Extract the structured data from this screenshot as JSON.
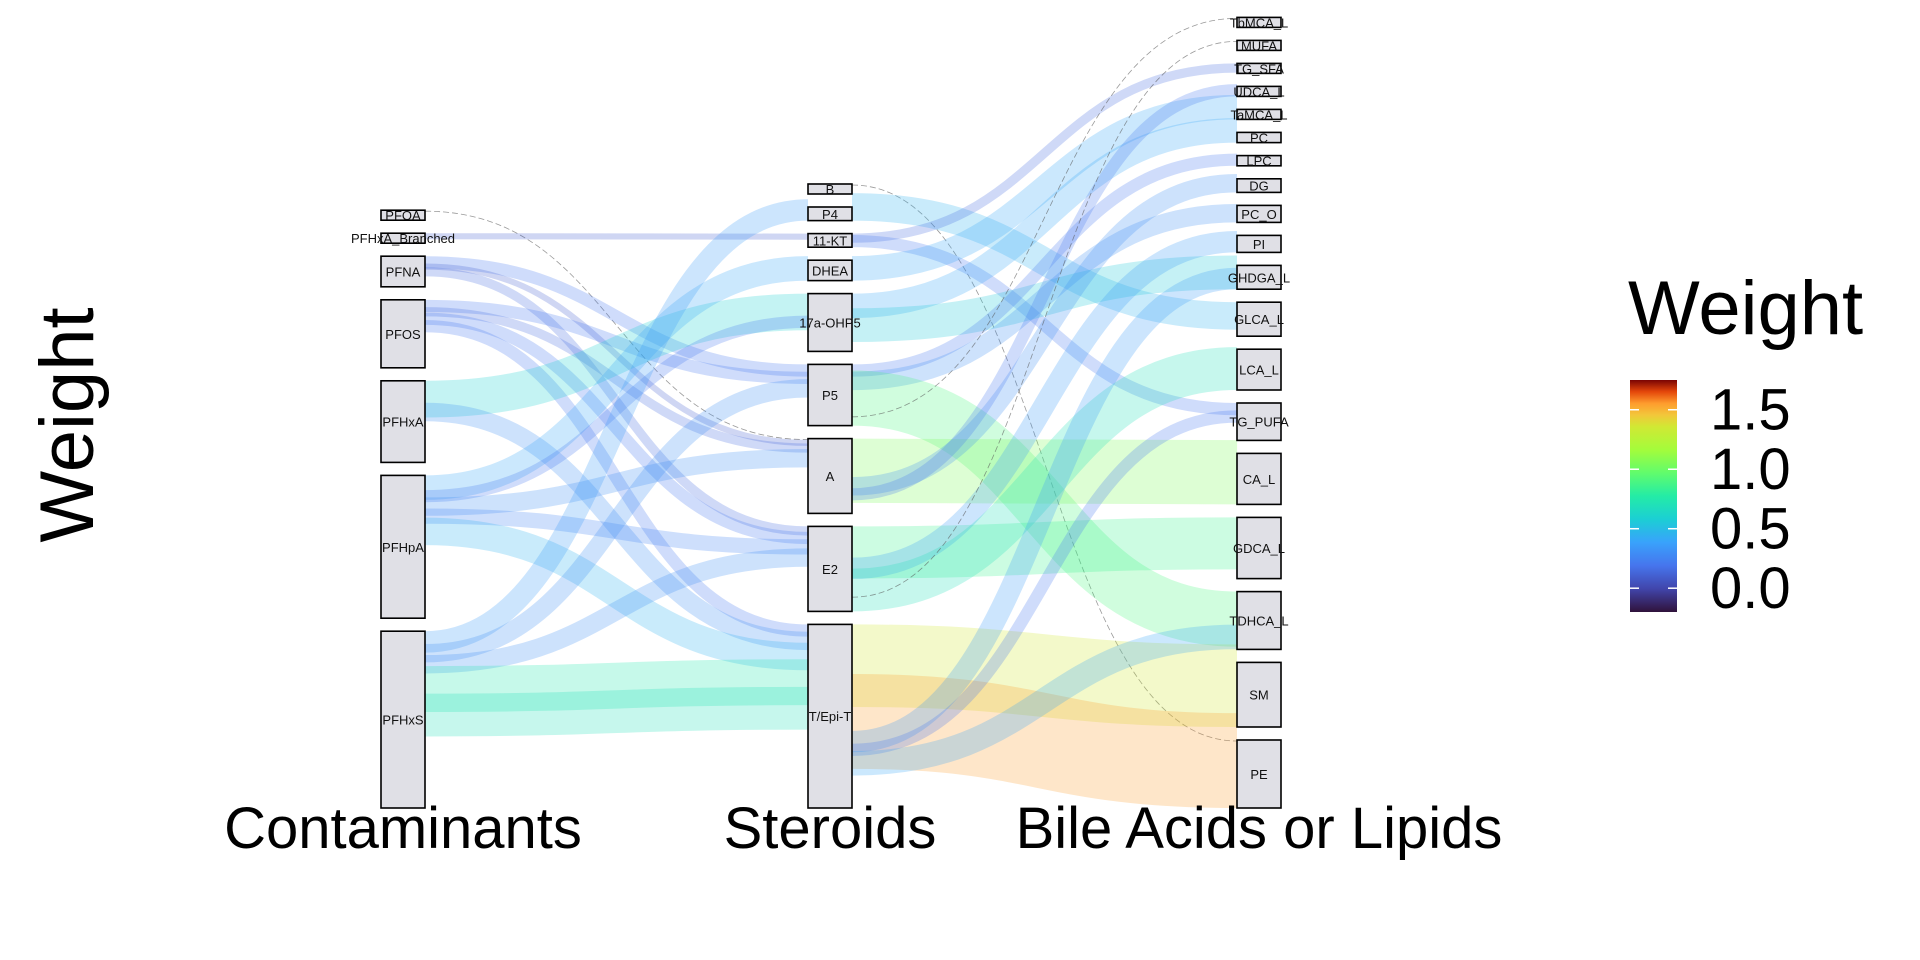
{
  "chart_data": {
    "type": "alluvial",
    "ylabel": "Weight",
    "axes": [
      {
        "label": "Contaminants",
        "nodes": [
          "PFOA",
          "PFHxA_Branched",
          "PFNA",
          "PFOS",
          "PFHxA",
          "PFHpA",
          "PFHxS"
        ]
      },
      {
        "label": "Steroids",
        "nodes": [
          "B",
          "P4",
          "11-KT",
          "DHEA",
          "17a-OHP5",
          "P5",
          "A",
          "E2",
          "T/Epi-T"
        ]
      },
      {
        "label": "Bile Acids or Lipids",
        "nodes": [
          "TbMCA_L",
          "MUFA",
          "TG_SFA",
          "UDCA_L",
          "TaMCA_L",
          "PC",
          "LPC",
          "DG",
          "PC_O",
          "PI",
          "GHDGA_L",
          "GLCA_L",
          "LCA_L",
          "TG_PUFA",
          "CA_L",
          "GDCA_L",
          "TDHCA_L",
          "SM",
          "PE"
        ]
      }
    ],
    "node_values": {
      "PFOA": 0.05,
      "PFHxA_Branched": 0.05,
      "PFNA": 0.45,
      "PFOS": 1.0,
      "PFHxA": 1.2,
      "PFHpA": 2.1,
      "PFHxS": 2.6,
      "B": 0.1,
      "P4": 0.2,
      "11-KT": 0.2,
      "DHEA": 0.3,
      "17a-OHP5": 0.85,
      "P5": 0.9,
      "A": 1.1,
      "E2": 1.25,
      "T/Epi-T": 2.7,
      "TbMCA_L": 0.05,
      "MUFA": 0.05,
      "TG_SFA": 0.05,
      "UDCA_L": 0.05,
      "TaMCA_L": 0.05,
      "PC": 0.15,
      "LPC": 0.15,
      "DG": 0.2,
      "PC_O": 0.25,
      "PI": 0.25,
      "GHDGA_L": 0.35,
      "GLCA_L": 0.5,
      "LCA_L": 0.6,
      "TG_PUFA": 0.55,
      "CA_L": 0.75,
      "GDCA_L": 0.9,
      "TDHCA_L": 0.85,
      "SM": 0.95,
      "PE": 1.0
    },
    "flows": [
      {
        "from": "PFOA",
        "to": "A",
        "weight": 0.0
      },
      {
        "from": "PFHxA_Branched",
        "to": "11-KT",
        "weight": 0.1
      },
      {
        "from": "PFNA",
        "to": "P5",
        "weight": 0.2
      },
      {
        "from": "PFNA",
        "to": "A",
        "weight": 0.1
      },
      {
        "from": "PFNA",
        "to": "E2",
        "weight": 0.15
      },
      {
        "from": "PFOS",
        "to": "P5",
        "weight": 0.2
      },
      {
        "from": "PFOS",
        "to": "A",
        "weight": 0.15
      },
      {
        "from": "PFOS",
        "to": "E2",
        "weight": 0.2
      },
      {
        "from": "PFOS",
        "to": "T/Epi-T",
        "weight": 0.2
      },
      {
        "from": "PFHxA",
        "to": "17a-OHP5",
        "weight": 0.6
      },
      {
        "from": "PFHxA",
        "to": "T/Epi-T",
        "weight": 0.3
      },
      {
        "from": "PFHpA",
        "to": "DHEA",
        "weight": 0.4
      },
      {
        "from": "PFHpA",
        "to": "17a-OHP5",
        "weight": 0.2
      },
      {
        "from": "PFHpA",
        "to": "A",
        "weight": 0.3
      },
      {
        "from": "PFHpA",
        "to": "E2",
        "weight": 0.25
      },
      {
        "from": "PFHpA",
        "to": "T/Epi-T",
        "weight": 0.45
      },
      {
        "from": "PFHxS",
        "to": "P4",
        "weight": 0.35
      },
      {
        "from": "PFHxS",
        "to": "P5",
        "weight": 0.3
      },
      {
        "from": "PFHxS",
        "to": "E2",
        "weight": 0.3
      },
      {
        "from": "PFHxS",
        "to": "T/Epi-T",
        "weight": 0.75
      },
      {
        "from": "PFHxS",
        "to": "T/Epi-T",
        "weight": 0.7
      },
      {
        "from": "B",
        "to": "PE",
        "weight": 0.0
      },
      {
        "from": "P4",
        "to": "GLCA_L",
        "weight": 0.45
      },
      {
        "from": "11-KT",
        "to": "TG_SFA",
        "weight": 0.15
      },
      {
        "from": "11-KT",
        "to": "TG_PUFA",
        "weight": 0.2
      },
      {
        "from": "DHEA",
        "to": "TaMCA_L",
        "weight": 0.4
      },
      {
        "from": "17a-OHP5",
        "to": "PC",
        "weight": 0.4
      },
      {
        "from": "17a-OHP5",
        "to": "GHDGA_L",
        "weight": 0.55
      },
      {
        "from": "P5",
        "to": "LPC",
        "weight": 0.2
      },
      {
        "from": "P5",
        "to": "PC_O",
        "weight": 0.3
      },
      {
        "from": "P5",
        "to": "TDHCA_L",
        "weight": 0.9
      },
      {
        "from": "P5",
        "to": "TbMCA_L",
        "weight": 0.0
      },
      {
        "from": "A",
        "to": "CA_L",
        "weight": 1.05
      },
      {
        "from": "A",
        "to": "DG",
        "weight": 0.3
      },
      {
        "from": "A",
        "to": "UDCA_L",
        "weight": 0.2
      },
      {
        "from": "E2",
        "to": "GDCA_L",
        "weight": 0.85
      },
      {
        "from": "E2",
        "to": "PI",
        "weight": 0.35
      },
      {
        "from": "E2",
        "to": "LCA_L",
        "weight": 0.7
      },
      {
        "from": "E2",
        "to": "MUFA",
        "weight": 0.0
      },
      {
        "from": "T/Epi-T",
        "to": "SM",
        "weight": 1.35
      },
      {
        "from": "T/Epi-T",
        "to": "PE",
        "weight": 1.55
      },
      {
        "from": "T/Epi-T",
        "to": "GHDGA_L",
        "weight": 0.35
      },
      {
        "from": "T/Epi-T",
        "to": "TG_PUFA",
        "weight": 0.2
      },
      {
        "from": "T/Epi-T",
        "to": "TDHCA_L",
        "weight": 0.4
      }
    ],
    "legend": {
      "title": "Weight",
      "ticks": [
        "1.5",
        "1.0",
        "0.5",
        "0.0"
      ],
      "tick_values": [
        1.5,
        1.0,
        0.5,
        0.0
      ],
      "range": [
        -0.2,
        1.75
      ],
      "colormap": "turbo",
      "placement": "right"
    }
  }
}
